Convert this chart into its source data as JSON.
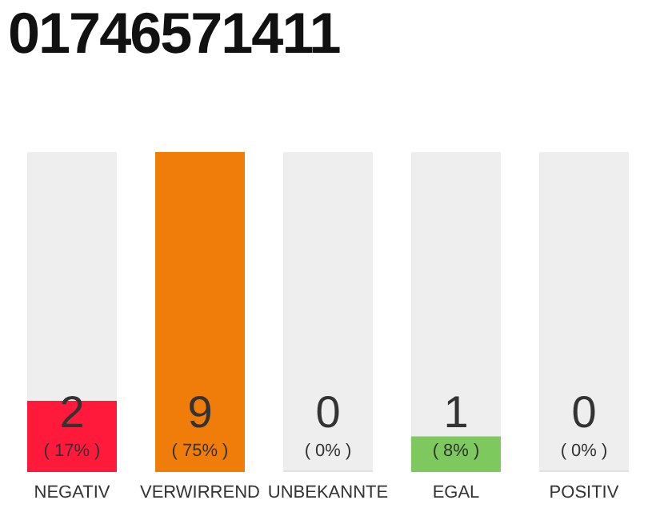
{
  "chart_data": {
    "type": "bar",
    "title": "01746571411",
    "categories": [
      "NEGATIV",
      "VERWIRREND",
      "UNBEKANNTE",
      "EGAL",
      "POSITIV"
    ],
    "values": [
      2,
      9,
      0,
      1,
      0
    ],
    "colors": [
      "#ff1a3c",
      "#f07d0a",
      "#e0e0e0",
      "#7dc95e",
      "#e0e0e0"
    ],
    "value_labels": [
      "2\n( 17% )",
      "9\n( 75% )",
      "0\n( 0% )",
      "1\n( 8% )",
      "0\n( 0% )"
    ],
    "grid": false,
    "legend": false
  }
}
